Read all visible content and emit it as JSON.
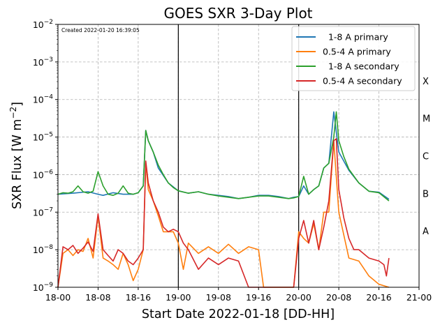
{
  "chart_data": {
    "type": "line",
    "title": "GOES SXR 3-Day Plot",
    "created_note": "Created 2022-01-20 16:39:05",
    "xlabel": "Start Date 2022-01-18 [DD-HH]",
    "ylabel": "SXR Flux [W m$^{-2}$]",
    "ylabel_parts": {
      "text": "SXR Flux [W m",
      "exp": "−2",
      "close": "]"
    },
    "x_unit": "hours since 2022-01-18 00:00",
    "xlim": [
      0,
      72
    ],
    "xtick_values": [
      0,
      8,
      16,
      24,
      32,
      40,
      48,
      56,
      64,
      72
    ],
    "xtick_labels": [
      "18-00",
      "18-08",
      "18-16",
      "19-00",
      "19-08",
      "19-16",
      "20-00",
      "20-08",
      "20-16",
      "21-00"
    ],
    "yscale": "log",
    "ylim": [
      1e-09,
      0.01
    ],
    "ytick_exponents": [
      -9,
      -8,
      -7,
      -6,
      -5,
      -4,
      -3,
      -2
    ],
    "ytick_base": "10",
    "grid": true,
    "legend_position": "top-right",
    "vertical_lines_x": [
      24,
      48
    ],
    "flare_classes": [
      {
        "label": "X",
        "log_center": -3.5
      },
      {
        "label": "M",
        "log_center": -4.5
      },
      {
        "label": "C",
        "log_center": -5.5
      },
      {
        "label": "B",
        "log_center": -6.5
      },
      {
        "label": "A",
        "log_center": -7.5
      }
    ],
    "series": [
      {
        "name": "  1-8 A primary",
        "color": "#1f77b4",
        "x": [
          0,
          3,
          6,
          8,
          9,
          11,
          13,
          15,
          16,
          17,
          17.5,
          18,
          19,
          20,
          22,
          24,
          26,
          28,
          30,
          32,
          34,
          36,
          38,
          40,
          42,
          44,
          46,
          47,
          48,
          49,
          50,
          51,
          52,
          53,
          54,
          55,
          56,
          58,
          60,
          62,
          64,
          66
        ],
        "y": [
          3e-07,
          3.2e-07,
          3.5e-07,
          3e-07,
          2.8e-07,
          3.3e-07,
          3e-07,
          3e-07,
          3.3e-07,
          5e-07,
          1.5e-05,
          8e-06,
          4e-06,
          1.5e-06,
          6e-07,
          3.7e-07,
          3.2e-07,
          3.5e-07,
          3e-07,
          2.8e-07,
          2.6e-07,
          2.3e-07,
          2.5e-07,
          2.8e-07,
          2.8e-07,
          2.6e-07,
          2.3e-07,
          2.5e-07,
          2.6e-07,
          5e-07,
          3e-07,
          4e-07,
          5e-07,
          1.5e-06,
          2e-06,
          4.7e-05,
          4e-06,
          1.3e-06,
          6e-07,
          3.6e-07,
          3.4e-07,
          2.2e-07
        ]
      },
      {
        "name": "0.5-4 A primary",
        "color": "#ff7f0e",
        "x": [
          0,
          1,
          2,
          3,
          4,
          5,
          6,
          7,
          8,
          9,
          10,
          11,
          12,
          13,
          14,
          15,
          16,
          17,
          17.5,
          18,
          19,
          20,
          21,
          22,
          23,
          24,
          25,
          26,
          28,
          30,
          32,
          34,
          36,
          38,
          40,
          41,
          42,
          44,
          46,
          47,
          48,
          49,
          50,
          51,
          52,
          53,
          54,
          55,
          56,
          58,
          60,
          62,
          64,
          66
        ],
        "y": [
          1e-09,
          8e-09,
          1e-08,
          7e-09,
          1e-08,
          9e-09,
          2e-08,
          6e-09,
          8e-08,
          6e-09,
          5e-09,
          4e-09,
          3e-09,
          8e-09,
          4e-09,
          1.5e-09,
          3e-09,
          1e-08,
          2e-06,
          4e-07,
          2e-07,
          8e-08,
          3e-08,
          3e-08,
          3e-08,
          1.5e-08,
          3e-09,
          1.5e-08,
          8e-09,
          1.2e-08,
          8e-09,
          1.4e-08,
          8e-09,
          1.2e-08,
          1e-08,
          1e-09,
          1e-09,
          1e-09,
          1e-09,
          1e-09,
          3e-08,
          2e-08,
          1.5e-08,
          5e-08,
          1e-08,
          1e-07,
          1e-07,
          8e-06,
          1e-07,
          6e-09,
          5e-09,
          2e-09,
          1.2e-09,
          1e-09
        ]
      },
      {
        "name": "  1-8 A secondary",
        "color": "#2ca02c",
        "x": [
          0,
          1,
          2,
          3,
          4,
          5,
          6,
          7,
          8,
          9,
          10,
          11,
          12,
          13,
          14,
          15,
          16,
          17,
          17.5,
          18,
          19,
          20,
          21,
          22,
          23,
          24,
          26,
          28,
          30,
          32,
          34,
          36,
          38,
          40,
          42,
          44,
          46,
          47,
          48,
          49,
          50,
          51,
          52,
          53,
          54,
          55,
          55.5,
          56,
          57,
          58,
          60,
          62,
          64,
          66
        ],
        "y": [
          3e-07,
          3.3e-07,
          3.2e-07,
          3.5e-07,
          5e-07,
          3.5e-07,
          3.2e-07,
          3.6e-07,
          1.2e-06,
          5e-07,
          3e-07,
          2.8e-07,
          3.2e-07,
          5e-07,
          3.2e-07,
          3e-07,
          3.3e-07,
          5e-07,
          1.5e-05,
          8e-06,
          4e-06,
          1.8e-06,
          1e-06,
          6e-07,
          4.5e-07,
          3.7e-07,
          3.2e-07,
          3.5e-07,
          3e-07,
          2.7e-07,
          2.5e-07,
          2.3e-07,
          2.5e-07,
          2.7e-07,
          2.7e-07,
          2.5e-07,
          2.3e-07,
          2.4e-07,
          2.6e-07,
          9e-07,
          3e-07,
          4e-07,
          5e-07,
          1.5e-06,
          2e-06,
          1e-05,
          4.7e-05,
          8e-06,
          3e-06,
          1.4e-06,
          6e-07,
          3.6e-07,
          3.3e-07,
          2e-07
        ]
      },
      {
        "name": "0.5-4 A secondary",
        "color": "#d62728",
        "x": [
          0,
          1,
          2,
          3,
          4,
          5,
          6,
          7,
          8,
          9,
          10,
          11,
          12,
          13,
          14,
          15,
          16,
          17,
          17.5,
          18,
          19,
          20,
          21,
          22,
          23,
          24,
          25,
          26,
          28,
          30,
          32,
          34,
          36,
          38,
          40,
          42,
          44,
          46,
          47,
          48,
          49,
          50,
          51,
          52,
          53,
          54,
          55,
          55.5,
          56,
          57,
          58,
          59,
          60,
          62,
          64,
          65,
          65.5,
          66
        ],
        "y": [
          1e-09,
          1.2e-08,
          1e-08,
          1.3e-08,
          8e-09,
          1.1e-08,
          1.6e-08,
          9e-09,
          9e-08,
          1e-08,
          7e-09,
          5e-09,
          1e-08,
          8e-09,
          5e-09,
          4e-09,
          6e-09,
          1e-08,
          2.3e-06,
          6e-07,
          2e-07,
          1e-07,
          4e-08,
          3e-08,
          3.5e-08,
          3e-08,
          1.5e-08,
          1e-08,
          3e-09,
          6e-09,
          4e-09,
          6e-09,
          5e-09,
          1e-09,
          1e-09,
          1e-09,
          1e-09,
          1e-09,
          1e-09,
          2e-08,
          6e-08,
          1.5e-08,
          6e-08,
          1e-08,
          4e-08,
          2e-07,
          8e-06,
          9e-06,
          4e-07,
          7e-08,
          2e-08,
          1e-08,
          1e-08,
          6e-09,
          5e-09,
          4e-09,
          2e-09,
          6e-09
        ]
      }
    ]
  }
}
